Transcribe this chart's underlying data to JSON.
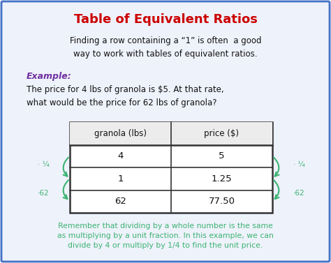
{
  "title": "Table of Equivalent Ratios",
  "title_color": "#cc0000",
  "bg_color": "#eef2fb",
  "border_color": "#4472c4",
  "intro_text": "Finding a row containing a “1” is often  a good\nway to work with tables of equivalent ratios.",
  "example_label": "Example:",
  "example_label_color": "#7030a0",
  "problem_text": "The price for 4 lbs of granola is $5. At that rate,\nwhat would be the price for 62 lbs of granola?",
  "table_headers": [
    "granola (lbs)",
    "price ($)"
  ],
  "table_rows": [
    [
      "4",
      "5"
    ],
    [
      "1",
      "1.25"
    ],
    [
      "62",
      "77.50"
    ]
  ],
  "table_border_color": "#333333",
  "arrow_color": "#3cb371",
  "footer_text": "Remember that dividing by a whole number is the same\nas multiplying by a unit fraction. In this example, we can\ndivide by 4 or multiply by 1/4 to find the unit price.",
  "footer_color": "#3cb371",
  "fig_width": 4.74,
  "fig_height": 3.77,
  "dpi": 100
}
